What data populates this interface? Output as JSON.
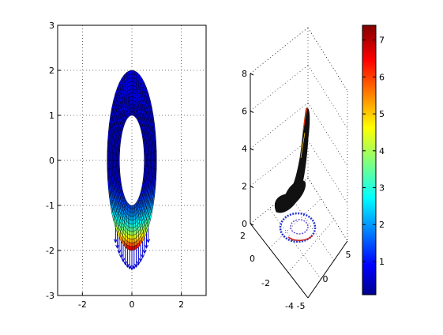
{
  "chart_data": [
    {
      "type": "surface-2d",
      "description_shape": "annulus mesh, ellipse outer/inner",
      "xlim": [
        -3,
        3
      ],
      "ylim": [
        -3,
        3
      ],
      "x_ticks": [
        -2,
        0,
        2
      ],
      "y_ticks": [
        -3,
        -2,
        -1,
        0,
        1,
        2,
        3
      ],
      "x_tick_labels": [
        "-2",
        "0",
        "2"
      ],
      "y_tick_labels": [
        "-3",
        "-2",
        "-1",
        "0",
        "1",
        "2",
        "3"
      ],
      "grid": true,
      "outer_radii": [
        1.0,
        2.0
      ],
      "inner_radii": [
        0.5,
        1.0
      ],
      "load_arrows_lower_half": true,
      "colormap": "jet"
    },
    {
      "type": "surface-3d",
      "xlim": [
        -5,
        5
      ],
      "ylim": [
        -4,
        2
      ],
      "zlim": [
        0,
        8
      ],
      "x_ticks": [
        -5,
        0,
        5
      ],
      "x_tick_labels": [
        "-5",
        "0",
        "5"
      ],
      "y_ticks": [
        -4,
        -2,
        0,
        2
      ],
      "y_tick_labels": [
        "-4",
        "-2",
        "0",
        "2"
      ],
      "z_ticks": [
        0,
        2,
        4,
        6,
        8
      ],
      "z_tick_labels": [
        "0",
        "2",
        "4",
        "6",
        "8"
      ],
      "grid": true,
      "peak_value": 7.4
    }
  ],
  "colorbar": {
    "colormap": "jet",
    "range": [
      0.1,
      7.4
    ],
    "ticks": [
      1,
      2,
      3,
      4,
      5,
      6,
      7
    ],
    "tick_labels": [
      "1",
      "2",
      "3",
      "4",
      "5",
      "6",
      "7"
    ]
  },
  "colors": {
    "mesh_line": "#000000",
    "arrow": "#0000cc",
    "grid": "#000000",
    "surface_black": "#111111"
  }
}
